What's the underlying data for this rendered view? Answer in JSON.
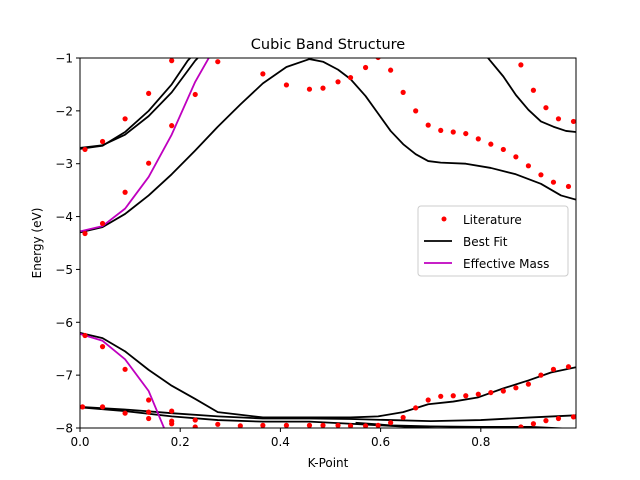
{
  "chart_data": {
    "type": "line",
    "title": "Cubic Band Structure",
    "xlabel": "K-Point",
    "ylabel": "Energy (eV)",
    "xlim": [
      0.0,
      0.99
    ],
    "ylim": [
      -8,
      -1
    ],
    "x_ticks": [
      0.0,
      0.2,
      0.4,
      0.6,
      0.8
    ],
    "x_tick_labels": [
      "0.0",
      "0.2",
      "0.4",
      "0.6",
      "0.8"
    ],
    "y_ticks": [
      -8,
      -7,
      -6,
      -5,
      -4,
      -3,
      -2,
      -1
    ],
    "y_tick_labels": [
      "−8",
      "−7",
      "−6",
      "−5",
      "−4",
      "−3",
      "−2",
      "−1"
    ],
    "grid": false,
    "legend": {
      "position": "center-right",
      "entries": [
        {
          "label": "Literature",
          "style": "dot",
          "color": "#ff0000"
        },
        {
          "label": "Best Fit",
          "style": "line",
          "color": "#000000"
        },
        {
          "label": "Effective Mass",
          "style": "line",
          "color": "#bf00bf"
        }
      ]
    },
    "series": [
      {
        "name": "Literature",
        "style": "scatter",
        "color": "#ff0000",
        "points": [
          [
            0.01,
            -2.73
          ],
          [
            0.045,
            -2.58
          ],
          [
            0.09,
            -2.15
          ],
          [
            0.137,
            -1.67
          ],
          [
            0.183,
            -1.05
          ],
          [
            0.275,
            -1.07
          ],
          [
            0.23,
            -1.69
          ],
          [
            0.183,
            -2.28
          ],
          [
            0.137,
            -2.99
          ],
          [
            0.09,
            -3.54
          ],
          [
            0.045,
            -4.13
          ],
          [
            0.01,
            -4.32
          ],
          [
            0.365,
            -1.3
          ],
          [
            0.412,
            -1.51
          ],
          [
            0.458,
            -1.59
          ],
          [
            0.485,
            -1.57
          ],
          [
            0.515,
            -1.45
          ],
          [
            0.54,
            -1.37
          ],
          [
            0.57,
            -1.18
          ],
          [
            0.595,
            -0.99
          ],
          [
            0.62,
            -1.23
          ],
          [
            0.645,
            -1.65
          ],
          [
            0.67,
            -2.0
          ],
          [
            0.695,
            -2.27
          ],
          [
            0.72,
            -2.37
          ],
          [
            0.745,
            -2.4
          ],
          [
            0.77,
            -2.43
          ],
          [
            0.795,
            -2.53
          ],
          [
            0.82,
            -2.63
          ],
          [
            0.845,
            -2.73
          ],
          [
            0.87,
            -2.87
          ],
          [
            0.895,
            -3.04
          ],
          [
            0.92,
            -3.21
          ],
          [
            0.945,
            -3.35
          ],
          [
            0.975,
            -3.43
          ],
          [
            0.88,
            -1.13
          ],
          [
            0.905,
            -1.61
          ],
          [
            0.93,
            -1.94
          ],
          [
            0.955,
            -2.15
          ],
          [
            0.985,
            -2.2
          ],
          [
            0.01,
            -6.25
          ],
          [
            0.045,
            -6.46
          ],
          [
            0.09,
            -6.89
          ],
          [
            0.137,
            -7.47
          ],
          [
            0.183,
            -7.87
          ],
          [
            0.23,
            -7.98
          ],
          [
            0.005,
            -7.6
          ],
          [
            0.045,
            -7.6
          ],
          [
            0.09,
            -7.72
          ],
          [
            0.137,
            -7.7
          ],
          [
            0.183,
            -7.68
          ],
          [
            0.137,
            -7.82
          ],
          [
            0.183,
            -7.92
          ],
          [
            0.23,
            -7.85
          ],
          [
            0.275,
            -7.93
          ],
          [
            0.32,
            -7.96
          ],
          [
            0.365,
            -7.95
          ],
          [
            0.412,
            -7.95
          ],
          [
            0.458,
            -7.95
          ],
          [
            0.485,
            -7.95
          ],
          [
            0.515,
            -7.95
          ],
          [
            0.54,
            -7.96
          ],
          [
            0.57,
            -7.96
          ],
          [
            0.595,
            -7.95
          ],
          [
            0.62,
            -7.9
          ],
          [
            0.645,
            -7.8
          ],
          [
            0.67,
            -7.62
          ],
          [
            0.695,
            -7.47
          ],
          [
            0.72,
            -7.4
          ],
          [
            0.745,
            -7.39
          ],
          [
            0.77,
            -7.39
          ],
          [
            0.795,
            -7.36
          ],
          [
            0.82,
            -7.33
          ],
          [
            0.845,
            -7.3
          ],
          [
            0.87,
            -7.24
          ],
          [
            0.895,
            -7.17
          ],
          [
            0.92,
            -7.0
          ],
          [
            0.945,
            -6.89
          ],
          [
            0.975,
            -6.84
          ],
          [
            0.88,
            -7.98
          ],
          [
            0.905,
            -7.92
          ],
          [
            0.93,
            -7.86
          ],
          [
            0.955,
            -7.82
          ],
          [
            0.985,
            -7.79
          ]
        ]
      },
      {
        "name": "Best Fit",
        "style": "line",
        "color": "#000000",
        "lines": [
          [
            [
              0.0,
              -2.7
            ],
            [
              0.045,
              -2.65
            ],
            [
              0.09,
              -2.45
            ],
            [
              0.137,
              -2.1
            ],
            [
              0.183,
              -1.65
            ],
            [
              0.23,
              -1.05
            ],
            [
              0.24,
              -0.95
            ]
          ],
          [
            [
              0.0,
              -2.72
            ],
            [
              0.045,
              -2.66
            ],
            [
              0.09,
              -2.4
            ],
            [
              0.137,
              -2.0
            ],
            [
              0.183,
              -1.5
            ],
            [
              0.215,
              -1.05
            ],
            [
              0.225,
              -0.95
            ]
          ],
          [
            [
              0.0,
              -4.3
            ],
            [
              0.045,
              -4.2
            ],
            [
              0.09,
              -3.95
            ],
            [
              0.137,
              -3.6
            ],
            [
              0.183,
              -3.2
            ],
            [
              0.23,
              -2.75
            ],
            [
              0.275,
              -2.3
            ],
            [
              0.32,
              -1.88
            ],
            [
              0.365,
              -1.48
            ],
            [
              0.412,
              -1.17
            ],
            [
              0.458,
              -1.02
            ],
            [
              0.485,
              -1.07
            ],
            [
              0.515,
              -1.22
            ],
            [
              0.54,
              -1.4
            ],
            [
              0.57,
              -1.72
            ],
            [
              0.595,
              -2.05
            ],
            [
              0.62,
              -2.38
            ],
            [
              0.645,
              -2.63
            ],
            [
              0.67,
              -2.82
            ],
            [
              0.695,
              -2.95
            ],
            [
              0.72,
              -2.98
            ],
            [
              0.77,
              -3.0
            ],
            [
              0.82,
              -3.08
            ],
            [
              0.87,
              -3.2
            ],
            [
              0.92,
              -3.38
            ],
            [
              0.96,
              -3.6
            ],
            [
              0.99,
              -3.68
            ]
          ],
          [
            [
              0.81,
              -0.95
            ],
            [
              0.845,
              -1.35
            ],
            [
              0.87,
              -1.7
            ],
            [
              0.895,
              -1.98
            ],
            [
              0.92,
              -2.2
            ],
            [
              0.945,
              -2.3
            ],
            [
              0.97,
              -2.38
            ],
            [
              0.99,
              -2.4
            ]
          ],
          [
            [
              0.0,
              -6.2
            ],
            [
              0.045,
              -6.3
            ],
            [
              0.09,
              -6.55
            ],
            [
              0.137,
              -6.9
            ],
            [
              0.183,
              -7.2
            ],
            [
              0.23,
              -7.45
            ],
            [
              0.275,
              -7.7
            ],
            [
              0.32,
              -7.75
            ],
            [
              0.365,
              -7.8
            ],
            [
              0.458,
              -7.8
            ],
            [
              0.54,
              -7.8
            ],
            [
              0.595,
              -7.78
            ],
            [
              0.645,
              -7.7
            ],
            [
              0.695,
              -7.55
            ],
            [
              0.745,
              -7.5
            ],
            [
              0.795,
              -7.42
            ],
            [
              0.845,
              -7.25
            ],
            [
              0.895,
              -7.1
            ],
            [
              0.94,
              -6.95
            ],
            [
              0.99,
              -6.85
            ]
          ],
          [
            [
              0.0,
              -7.6
            ],
            [
              0.09,
              -7.65
            ],
            [
              0.183,
              -7.72
            ],
            [
              0.275,
              -7.78
            ],
            [
              0.365,
              -7.82
            ],
            [
              0.458,
              -7.82
            ],
            [
              0.54,
              -7.83
            ],
            [
              0.62,
              -7.85
            ],
            [
              0.7,
              -7.87
            ],
            [
              0.8,
              -7.85
            ],
            [
              0.9,
              -7.8
            ],
            [
              0.99,
              -7.76
            ]
          ],
          [
            [
              0.0,
              -7.61
            ],
            [
              0.09,
              -7.68
            ],
            [
              0.183,
              -7.78
            ],
            [
              0.275,
              -7.85
            ],
            [
              0.365,
              -7.88
            ],
            [
              0.458,
              -7.88
            ],
            [
              0.54,
              -7.92
            ],
            [
              0.62,
              -7.96
            ],
            [
              0.7,
              -8.0
            ],
            [
              0.8,
              -8.05
            ]
          ],
          [
            [
              0.55,
              -7.9
            ],
            [
              0.62,
              -7.95
            ],
            [
              0.7,
              -7.97
            ],
            [
              0.8,
              -7.98
            ],
            [
              0.9,
              -7.98
            ],
            [
              0.99,
              -8.02
            ]
          ]
        ]
      },
      {
        "name": "Effective Mass",
        "style": "line",
        "color": "#bf00bf",
        "lines": [
          [
            [
              0.0,
              -4.28
            ],
            [
              0.045,
              -4.18
            ],
            [
              0.09,
              -3.85
            ],
            [
              0.137,
              -3.25
            ],
            [
              0.183,
              -2.45
            ],
            [
              0.23,
              -1.45
            ],
            [
              0.26,
              -0.95
            ]
          ],
          [
            [
              0.0,
              -6.22
            ],
            [
              0.045,
              -6.35
            ],
            [
              0.09,
              -6.7
            ],
            [
              0.137,
              -7.3
            ],
            [
              0.17,
              -8.05
            ]
          ]
        ]
      }
    ]
  }
}
